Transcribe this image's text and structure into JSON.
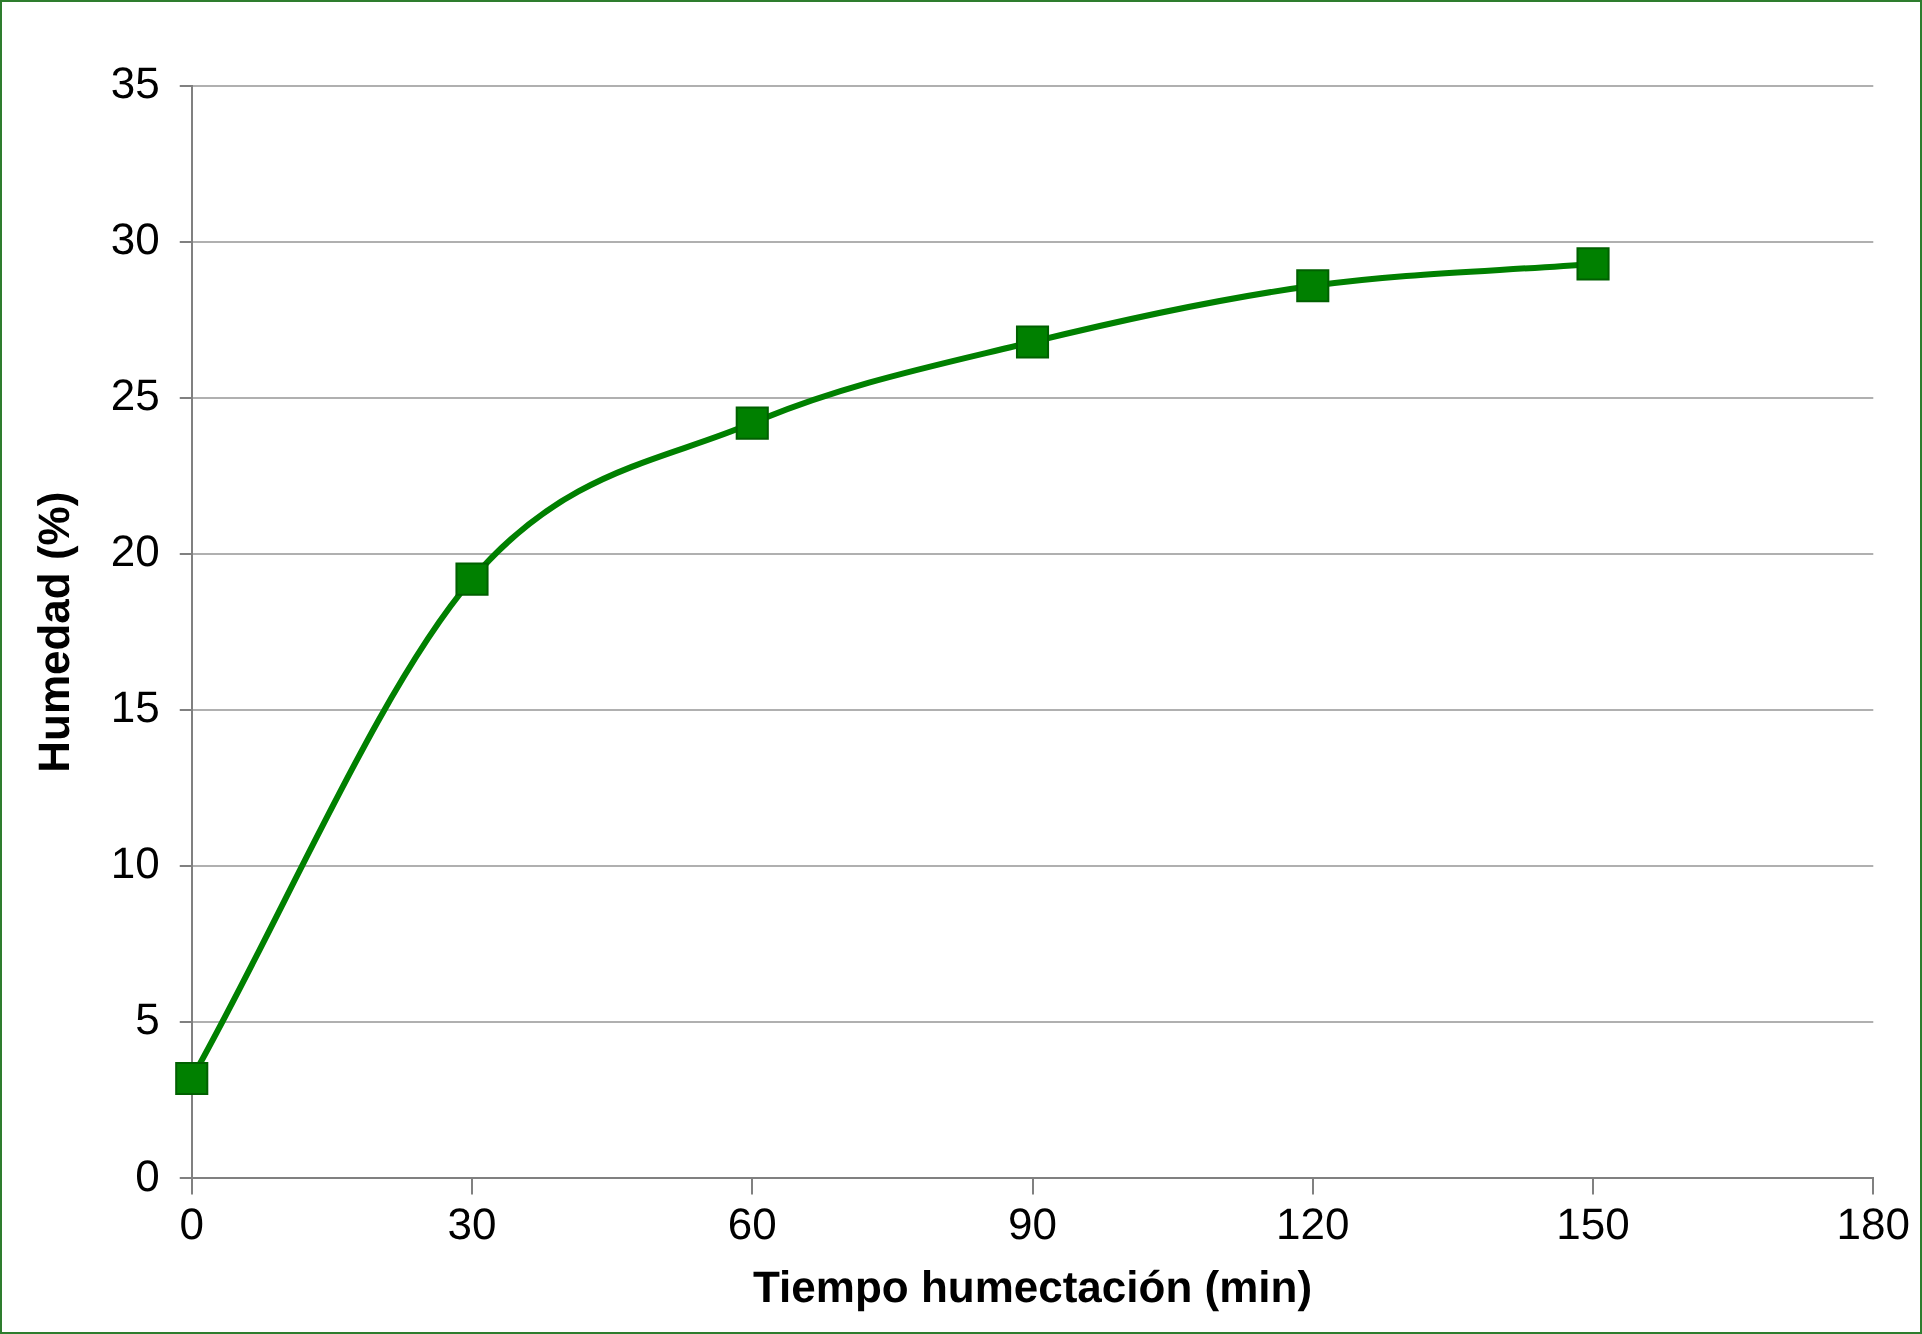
{
  "chart_data": {
    "type": "line",
    "xlabel": "Tiempo humectación (min)",
    "ylabel": "Humedad (%)",
    "x": [
      0,
      30,
      60,
      90,
      120,
      150
    ],
    "series": [
      {
        "color": "#008000",
        "values": [
          3.2,
          19.2,
          24.2,
          26.8,
          28.6,
          29.3
        ]
      }
    ],
    "xlim": [
      0,
      180
    ],
    "xticks": [
      0,
      30,
      60,
      90,
      120,
      150,
      180
    ],
    "ylim": [
      0,
      35
    ],
    "yticks": [
      0,
      5,
      10,
      15,
      20,
      25,
      30,
      35
    ],
    "grid": "y",
    "marker": "square",
    "line_style": "solid",
    "legend": false
  }
}
